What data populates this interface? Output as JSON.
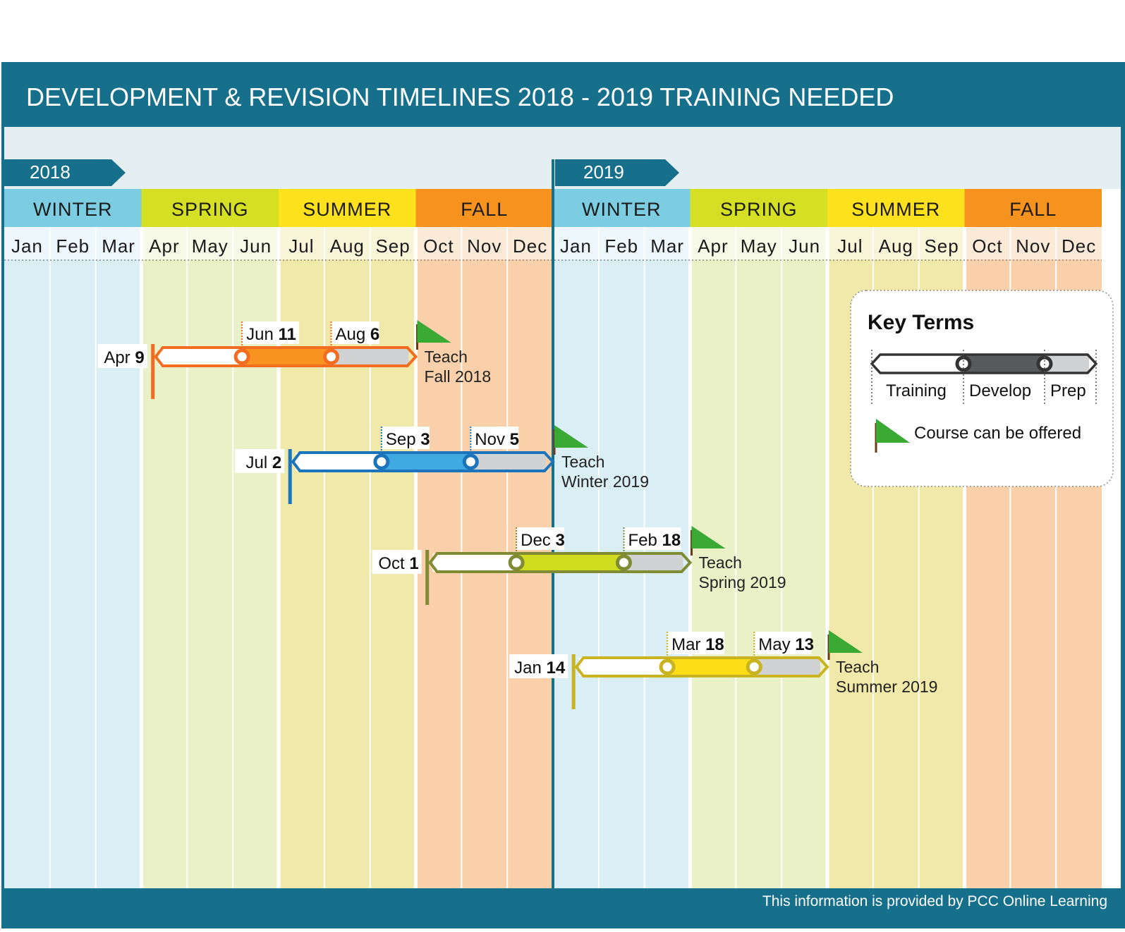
{
  "title": "DEVELOPMENT & REVISION TIMELINES 2018 - 2019 TRAINING NEEDED",
  "years": [
    "2018",
    "2019"
  ],
  "seasons": [
    {
      "label": "WINTER",
      "color": "#7ccde1",
      "tint": "#d9eef5"
    },
    {
      "label": "SPRING",
      "color": "#d5df24",
      "tint": "#ebf1c6"
    },
    {
      "label": "SUMMER",
      "color": "#fce11c",
      "tint": "#f1e9a9"
    },
    {
      "label": "FALL",
      "color": "#f6931e",
      "tint": "#f9d0aa"
    }
  ],
  "months": [
    "Jan",
    "Feb",
    "Mar",
    "Apr",
    "May",
    "Jun",
    "Jul",
    "Aug",
    "Sep",
    "Oct",
    "Nov",
    "Dec"
  ],
  "timelines": [
    {
      "color": "#f26d21",
      "fill": "#f7931e",
      "start": {
        "month": "Apr",
        "day": "9",
        "pos": 3.25
      },
      "develop": {
        "month": "Jun",
        "day": "11",
        "pos": 5.2
      },
      "prep": {
        "month": "Aug",
        "day": "6",
        "pos": 7.15
      },
      "end_pos": 9.0,
      "teach": [
        "Teach",
        "Fall 2018"
      ]
    },
    {
      "color": "#1c75bc",
      "fill": "#3fa9e0",
      "start": {
        "month": "Jul",
        "day": "2",
        "pos": 6.25
      },
      "develop": {
        "month": "Sep",
        "day": "3",
        "pos": 8.25
      },
      "prep": {
        "month": "Nov",
        "day": "5",
        "pos": 10.2
      },
      "end_pos": 12.0,
      "teach": [
        "Teach",
        "Winter 2019"
      ]
    },
    {
      "color": "#7f8c33",
      "fill": "#cfdc1f",
      "start": {
        "month": "Oct",
        "day": "1",
        "pos": 9.25
      },
      "develop": {
        "month": "Dec",
        "day": "3",
        "pos": 11.2
      },
      "prep": {
        "month": "Feb",
        "day": "18",
        "pos": 13.55
      },
      "end_pos": 15.0,
      "teach": [
        "Teach",
        "Spring 2019"
      ]
    },
    {
      "color": "#c9b320",
      "fill": "#fcdd17",
      "start": {
        "month": "Jan",
        "day": "14",
        "pos": 12.45
      },
      "develop": {
        "month": "Mar",
        "day": "18",
        "pos": 14.5
      },
      "prep": {
        "month": "May",
        "day": "13",
        "pos": 16.4
      },
      "end_pos": 18.0,
      "teach": [
        "Teach",
        "Summer 2019"
      ]
    }
  ],
  "key": {
    "title": "Key Terms",
    "training": "Training",
    "develop": "Develop",
    "prep": "Prep",
    "offered": "Course can be offered"
  },
  "colors": {
    "teal": "#16708c",
    "flag": "#3aaa35",
    "flag_pole": "#6b3a16"
  },
  "footer": "This information is provided by PCC Online Learning"
}
